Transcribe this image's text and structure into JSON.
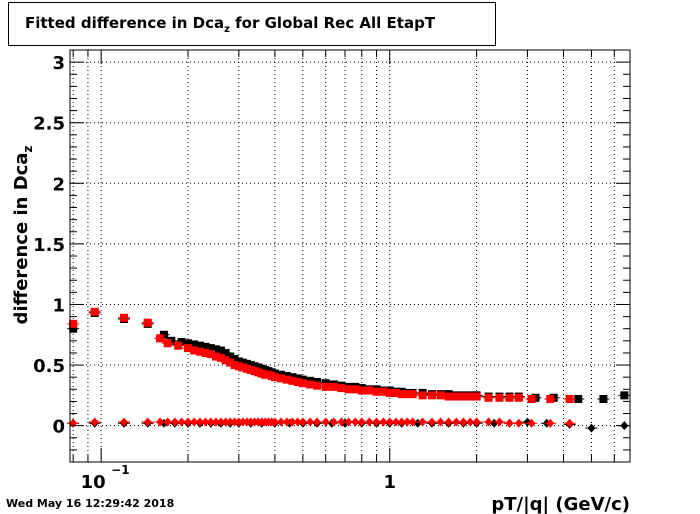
{
  "title": {
    "main": "Fitted difference in Dca",
    "subscript": "z",
    "rest": " for Global Rec All EtapT"
  },
  "timestamp": "Wed May 16 12:29:42 2018",
  "chart_data": {
    "type": "scatter",
    "title": "Fitted difference in Dca_z for Global Rec All EtapT",
    "xlabel": "pT/|q| (GeV/c)",
    "ylabel": "difference in Dca_z",
    "xscale": "log",
    "xlim": [
      0.078,
      6.8
    ],
    "ylim": [
      -0.3,
      3.1
    ],
    "y_ticks": [
      0,
      0.5,
      1,
      1.5,
      2,
      2.5,
      3
    ],
    "y_tick_labels": [
      "0",
      "0.5",
      "1",
      "1.5",
      "2",
      "2.5",
      "3"
    ],
    "x_tick_labels": [
      {
        "value": 0.1,
        "base": "10",
        "exponent": "−1"
      },
      {
        "value": 1,
        "base": "1",
        "exponent": ""
      }
    ],
    "grid": true,
    "series": [
      {
        "marker": "square",
        "color": "#000000",
        "x": [
          0.08,
          0.095,
          0.12,
          0.145,
          0.165,
          0.175,
          0.19,
          0.2,
          0.21,
          0.22,
          0.23,
          0.24,
          0.25,
          0.26,
          0.27,
          0.28,
          0.29,
          0.3,
          0.31,
          0.32,
          0.33,
          0.34,
          0.35,
          0.36,
          0.37,
          0.38,
          0.39,
          0.4,
          0.42,
          0.44,
          0.46,
          0.48,
          0.5,
          0.53,
          0.56,
          0.6,
          0.64,
          0.68,
          0.72,
          0.76,
          0.8,
          0.85,
          0.9,
          0.95,
          1.0,
          1.05,
          1.1,
          1.15,
          1.2,
          1.3,
          1.4,
          1.5,
          1.6,
          1.7,
          1.8,
          1.9,
          2.0,
          2.2,
          2.4,
          2.6,
          2.8,
          3.2,
          3.7,
          4.5,
          5.5,
          6.5
        ],
        "y": [
          0.8,
          0.93,
          0.88,
          0.84,
          0.75,
          0.7,
          0.69,
          0.68,
          0.67,
          0.66,
          0.65,
          0.64,
          0.63,
          0.62,
          0.6,
          0.57,
          0.55,
          0.53,
          0.52,
          0.51,
          0.5,
          0.49,
          0.48,
          0.47,
          0.46,
          0.45,
          0.44,
          0.43,
          0.42,
          0.41,
          0.4,
          0.39,
          0.38,
          0.37,
          0.36,
          0.35,
          0.34,
          0.33,
          0.32,
          0.32,
          0.31,
          0.3,
          0.3,
          0.29,
          0.29,
          0.28,
          0.28,
          0.27,
          0.27,
          0.27,
          0.26,
          0.26,
          0.26,
          0.25,
          0.25,
          0.25,
          0.25,
          0.24,
          0.24,
          0.24,
          0.24,
          0.23,
          0.23,
          0.22,
          0.22,
          0.25
        ]
      },
      {
        "marker": "square",
        "color": "#ff0000",
        "x": [
          0.08,
          0.095,
          0.12,
          0.145,
          0.16,
          0.17,
          0.185,
          0.2,
          0.21,
          0.22,
          0.23,
          0.24,
          0.25,
          0.26,
          0.27,
          0.28,
          0.29,
          0.3,
          0.31,
          0.32,
          0.33,
          0.34,
          0.35,
          0.36,
          0.37,
          0.38,
          0.39,
          0.4,
          0.42,
          0.44,
          0.46,
          0.48,
          0.5,
          0.53,
          0.56,
          0.6,
          0.64,
          0.68,
          0.72,
          0.76,
          0.8,
          0.85,
          0.9,
          0.95,
          1.0,
          1.05,
          1.1,
          1.15,
          1.2,
          1.3,
          1.4,
          1.5,
          1.6,
          1.7,
          1.8,
          1.9,
          2.0,
          2.2,
          2.4,
          2.6,
          2.8,
          3.1,
          3.6,
          4.2
        ],
        "y": [
          0.84,
          0.94,
          0.89,
          0.85,
          0.72,
          0.68,
          0.66,
          0.64,
          0.62,
          0.61,
          0.6,
          0.59,
          0.57,
          0.56,
          0.54,
          0.52,
          0.5,
          0.49,
          0.48,
          0.47,
          0.46,
          0.45,
          0.44,
          0.43,
          0.42,
          0.42,
          0.41,
          0.4,
          0.39,
          0.38,
          0.37,
          0.36,
          0.35,
          0.34,
          0.33,
          0.32,
          0.32,
          0.31,
          0.3,
          0.3,
          0.29,
          0.29,
          0.28,
          0.28,
          0.27,
          0.27,
          0.26,
          0.26,
          0.26,
          0.25,
          0.25,
          0.25,
          0.24,
          0.24,
          0.24,
          0.24,
          0.24,
          0.23,
          0.23,
          0.23,
          0.23,
          0.22,
          0.22,
          0.22
        ]
      },
      {
        "marker": "diamond",
        "color": "#000000",
        "x": [
          0.08,
          0.095,
          0.12,
          0.145,
          0.165,
          0.18,
          0.2,
          0.22,
          0.24,
          0.26,
          0.28,
          0.3,
          0.33,
          0.36,
          0.4,
          0.45,
          0.5,
          0.56,
          0.63,
          0.7,
          0.8,
          0.9,
          1.0,
          1.1,
          1.25,
          1.4,
          1.6,
          1.8,
          2.0,
          2.3,
          2.6,
          3.0,
          3.5,
          4.2,
          5.0,
          6.5
        ],
        "y": [
          0.02,
          0.02,
          0.02,
          0.02,
          0.02,
          0.02,
          0.02,
          0.02,
          0.02,
          0.02,
          0.02,
          0.02,
          0.02,
          0.02,
          0.02,
          0.02,
          0.02,
          0.02,
          0.02,
          0.02,
          0.02,
          0.02,
          0.02,
          0.02,
          0.02,
          0.02,
          0.02,
          0.02,
          0.02,
          0.02,
          0.02,
          0.03,
          0.02,
          0.01,
          -0.02,
          0.0
        ]
      },
      {
        "marker": "diamond",
        "color": "#ff0000",
        "x": [
          0.08,
          0.095,
          0.12,
          0.145,
          0.16,
          0.17,
          0.18,
          0.19,
          0.2,
          0.21,
          0.22,
          0.23,
          0.24,
          0.25,
          0.26,
          0.27,
          0.28,
          0.29,
          0.3,
          0.31,
          0.32,
          0.33,
          0.34,
          0.35,
          0.36,
          0.37,
          0.38,
          0.39,
          0.4,
          0.42,
          0.44,
          0.46,
          0.48,
          0.5,
          0.53,
          0.56,
          0.6,
          0.64,
          0.68,
          0.72,
          0.76,
          0.8,
          0.85,
          0.9,
          0.95,
          1.0,
          1.05,
          1.1,
          1.15,
          1.2,
          1.3,
          1.4,
          1.5,
          1.6,
          1.7,
          1.8,
          1.9,
          2.0,
          2.2,
          2.4,
          2.6,
          2.8,
          3.1,
          3.6,
          4.2
        ],
        "y": [
          0.02,
          0.03,
          0.03,
          0.03,
          0.03,
          0.03,
          0.03,
          0.03,
          0.03,
          0.03,
          0.03,
          0.03,
          0.03,
          0.03,
          0.03,
          0.03,
          0.03,
          0.03,
          0.03,
          0.03,
          0.03,
          0.03,
          0.03,
          0.03,
          0.03,
          0.03,
          0.03,
          0.03,
          0.03,
          0.03,
          0.03,
          0.03,
          0.03,
          0.03,
          0.03,
          0.03,
          0.03,
          0.03,
          0.03,
          0.03,
          0.03,
          0.03,
          0.03,
          0.03,
          0.03,
          0.03,
          0.03,
          0.03,
          0.03,
          0.03,
          0.03,
          0.03,
          0.03,
          0.03,
          0.03,
          0.03,
          0.03,
          0.03,
          0.03,
          0.03,
          0.02,
          0.02,
          0.02,
          0.02,
          0.02
        ]
      }
    ]
  }
}
